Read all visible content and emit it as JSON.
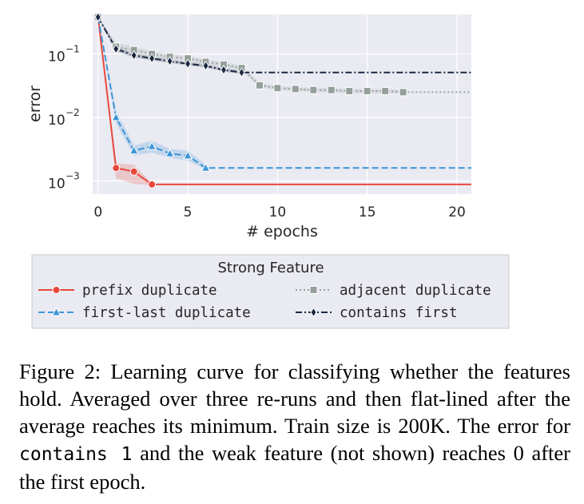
{
  "chart_data": {
    "type": "line",
    "title": "",
    "xlabel": "# epochs",
    "ylabel": "error",
    "yscale": "log",
    "xlim": [
      -0.3,
      20.8
    ],
    "ylim": [
      0.00062,
      0.42
    ],
    "xticks": [
      0,
      5,
      10,
      15,
      20
    ],
    "yticks": [
      0.1,
      0.01,
      0.001
    ],
    "ytick_labels": [
      {
        "base": "10",
        "exp": "−1"
      },
      {
        "base": "10",
        "exp": "−2"
      },
      {
        "base": "10",
        "exp": "−3"
      }
    ],
    "grid": true,
    "legend": {
      "placement": "below",
      "title": "Strong Feature"
    },
    "series": [
      {
        "name": "prefix duplicate",
        "color": "#e8493d",
        "linestyle": "solid",
        "marker": "circle",
        "x": [
          0,
          1,
          2,
          3
        ],
        "y": [
          0.38,
          0.0016,
          0.0014,
          0.00088
        ],
        "band_low": [
          0.38,
          0.0011,
          0.0009,
          0.00085
        ],
        "band_high": [
          0.38,
          0.0019,
          0.0018,
          0.00092
        ],
        "flat_to": 20.8
      },
      {
        "name": "first-last duplicate",
        "color": "#3d95d6",
        "linestyle": "dashed",
        "marker": "triangle",
        "x": [
          0,
          1,
          2,
          3,
          4,
          5,
          6
        ],
        "y": [
          0.38,
          0.01,
          0.003,
          0.0035,
          0.0027,
          0.0025,
          0.0016
        ],
        "band_low": [
          0.38,
          0.008,
          0.0025,
          0.0028,
          0.0023,
          0.0021,
          0.0015
        ],
        "band_high": [
          0.38,
          0.013,
          0.0036,
          0.0043,
          0.0032,
          0.003,
          0.0018
        ],
        "flat_to": 20.8
      },
      {
        "name": "adjacent duplicate",
        "color": "#95a09c",
        "linestyle": "dotted",
        "marker": "square",
        "x": [
          0,
          1,
          2,
          3,
          4,
          5,
          6,
          7,
          8,
          9,
          10,
          11,
          12,
          13,
          14,
          15,
          16,
          17
        ],
        "y": [
          0.38,
          0.13,
          0.115,
          0.1,
          0.09,
          0.085,
          0.075,
          0.068,
          0.06,
          0.032,
          0.029,
          0.028,
          0.027,
          0.027,
          0.026,
          0.026,
          0.026,
          0.025
        ],
        "band_low": [
          0.38,
          0.11,
          0.1,
          0.09,
          0.082,
          0.077,
          0.068,
          0.062,
          0.055,
          0.03,
          0.027,
          0.026,
          0.025,
          0.025,
          0.024,
          0.024,
          0.024,
          0.024
        ],
        "band_high": [
          0.38,
          0.15,
          0.13,
          0.11,
          0.098,
          0.093,
          0.082,
          0.074,
          0.066,
          0.035,
          0.031,
          0.03,
          0.029,
          0.029,
          0.028,
          0.028,
          0.028,
          0.027
        ],
        "flat_to": 20.8
      },
      {
        "name": "contains first",
        "color": "#1a2840",
        "linestyle": "dashdot",
        "marker": "diamond",
        "x": [
          0,
          1,
          2,
          3,
          4,
          5,
          6,
          7,
          8
        ],
        "y": [
          0.38,
          0.12,
          0.095,
          0.085,
          0.077,
          0.07,
          0.065,
          0.056,
          0.051
        ],
        "band_low": [
          0.38,
          0.11,
          0.088,
          0.079,
          0.072,
          0.066,
          0.061,
          0.053,
          0.048
        ],
        "band_high": [
          0.38,
          0.13,
          0.102,
          0.091,
          0.082,
          0.075,
          0.069,
          0.06,
          0.055
        ],
        "flat_to": 20.8
      }
    ]
  },
  "caption": {
    "part1": "Figure 2: Learning curve for classifying whether the features hold. Averaged over three re-runs and then flat-lined after the average reaches its minimum. Train size is 200K. The error for ",
    "code": "contains 1",
    "part2": " and the weak feature (not shown) reaches 0 after the first epoch."
  }
}
